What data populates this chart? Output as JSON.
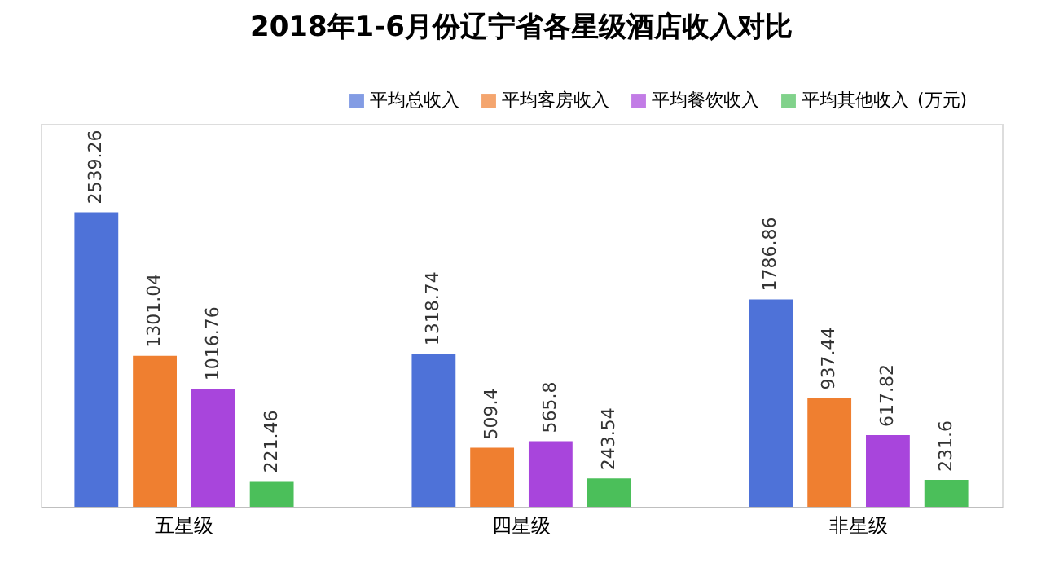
{
  "chart_data": {
    "type": "bar",
    "title": "2018年1-6月份辽宁省各星级酒店收入对比",
    "categories": [
      "五星级",
      "四星级",
      "非星级"
    ],
    "series": [
      {
        "name": "平均总收入",
        "color": "#4e72d8",
        "values": [
          2539.26,
          1318.74,
          1786.86
        ]
      },
      {
        "name": "平均客房收入",
        "color": "#ef7f30",
        "values": [
          1301.04,
          509.4,
          937.44
        ]
      },
      {
        "name": "平均餐饮收入",
        "color": "#a845dc",
        "values": [
          1016.76,
          565.8,
          617.82
        ]
      },
      {
        "name": "平均其他收入",
        "color": "#4bbf5a",
        "values": [
          221.46,
          243.54,
          231.6
        ]
      }
    ],
    "annotations": [
      "(万元)"
    ],
    "data_labels": true,
    "legend": "top right",
    "grid": false
  }
}
